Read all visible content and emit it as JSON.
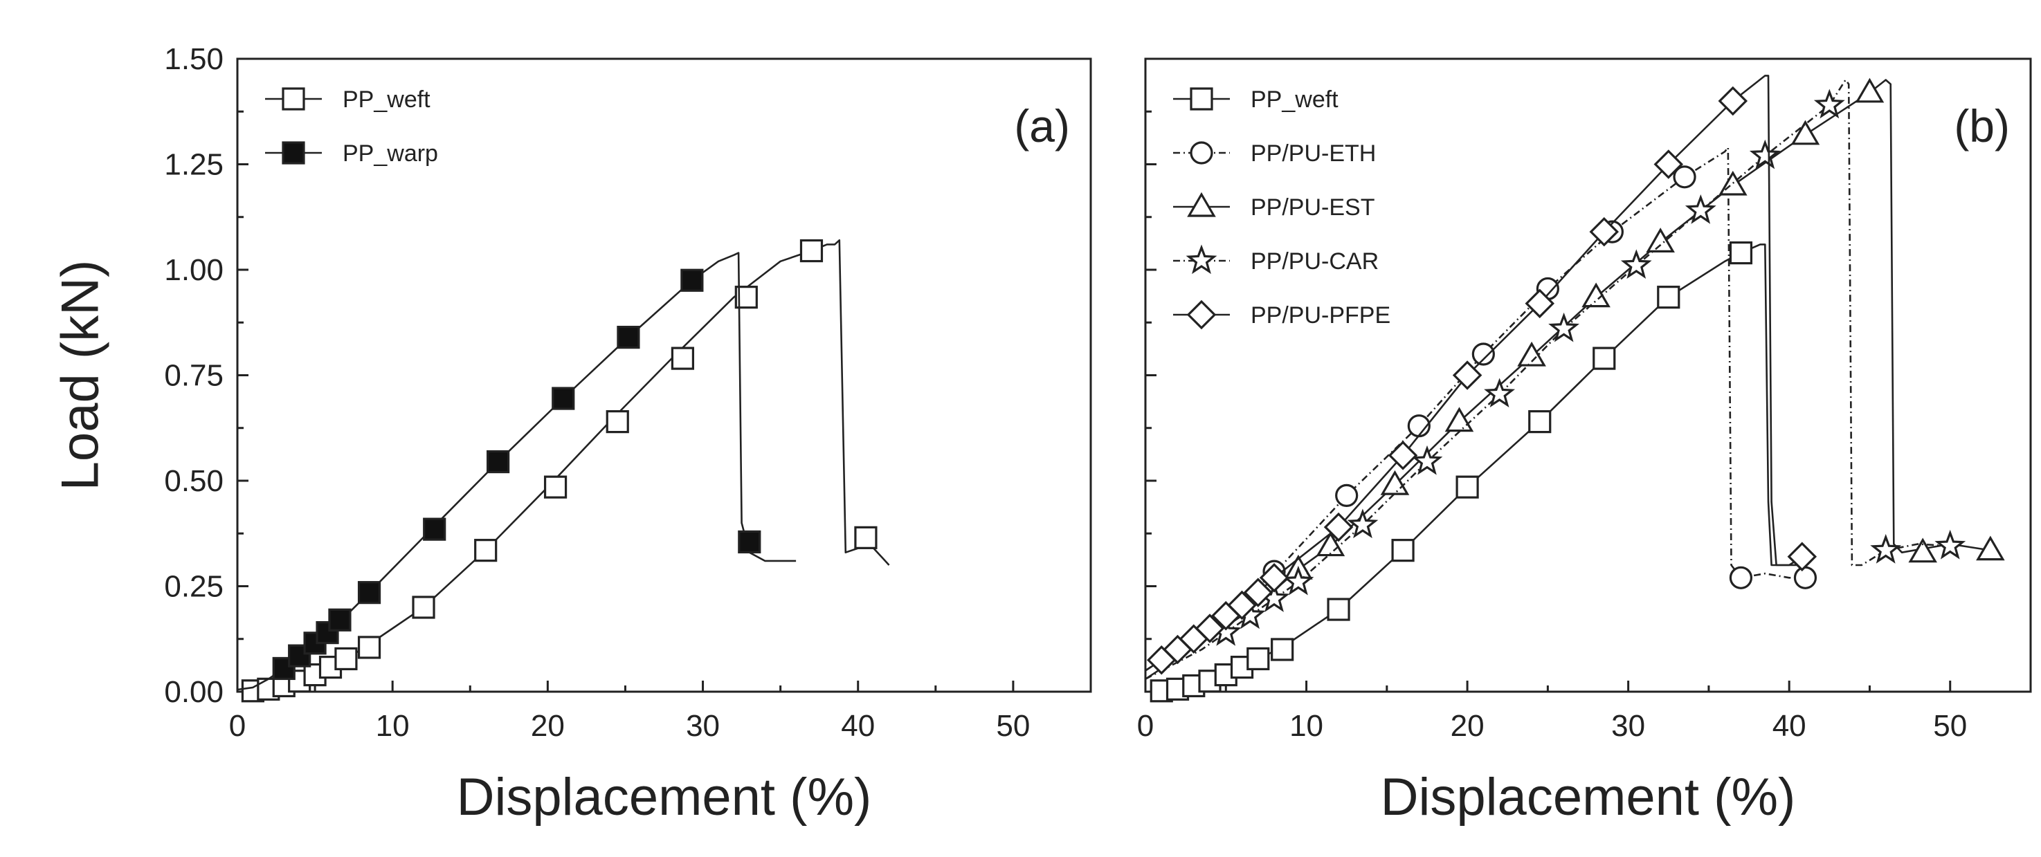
{
  "chart_data": [
    {
      "type": "line",
      "panel_label": "(a)",
      "xlabel": "Displacement (%)",
      "ylabel": "Load (kN)",
      "xlim": [
        0,
        55
      ],
      "ylim": [
        0,
        1.5
      ],
      "xticks": [
        "0",
        "10",
        "20",
        "30",
        "40",
        "50"
      ],
      "yticks": [
        "0.00",
        "0.25",
        "0.50",
        "0.75",
        "1.00",
        "1.25",
        "1.50"
      ],
      "xtick_values": [
        0,
        10,
        20,
        30,
        40,
        50
      ],
      "ytick_values": [
        0,
        0.25,
        0.5,
        0.75,
        1.0,
        1.25,
        1.5
      ],
      "legend_position": "top-left",
      "series": [
        {
          "name": "PP_weft",
          "marker": "square-open",
          "line": "solid",
          "points": [
            [
              0,
              0
            ],
            [
              1,
              0.002
            ],
            [
              2,
              0.006
            ],
            [
              3,
              0.014
            ],
            [
              4,
              0.025
            ],
            [
              5,
              0.04
            ],
            [
              6,
              0.058
            ],
            [
              7,
              0.078
            ],
            [
              8,
              0.1
            ],
            [
              10,
              0.15
            ],
            [
              12,
              0.2
            ],
            [
              16,
              0.335
            ],
            [
              20,
              0.485
            ],
            [
              24,
              0.64
            ],
            [
              28,
              0.79
            ],
            [
              32,
              0.935
            ],
            [
              35,
              1.02
            ],
            [
              37,
              1.045
            ],
            [
              38,
              1.06
            ],
            [
              38.5,
              1.06
            ],
            [
              38.8,
              1.07
            ],
            [
              39.2,
              0.33
            ],
            [
              40,
              0.34
            ],
            [
              40.5,
              0.36
            ],
            [
              41.5,
              0.32
            ],
            [
              42,
              0.3
            ]
          ],
          "marker_points": [
            [
              1,
              0.002
            ],
            [
              2,
              0.006
            ],
            [
              3,
              0.014
            ],
            [
              4,
              0.025
            ],
            [
              5,
              0.04
            ],
            [
              6,
              0.058
            ],
            [
              7,
              0.078
            ],
            [
              8.5,
              0.105
            ],
            [
              12,
              0.2
            ],
            [
              16,
              0.335
            ],
            [
              20.5,
              0.485
            ],
            [
              24.5,
              0.64
            ],
            [
              28.7,
              0.79
            ],
            [
              32.8,
              0.935
            ],
            [
              37,
              1.045
            ],
            [
              40.5,
              0.365
            ]
          ]
        },
        {
          "name": "PP_warp",
          "marker": "square-filled",
          "line": "solid",
          "points": [
            [
              0,
              0.005
            ],
            [
              1,
              0.01
            ],
            [
              2,
              0.03
            ],
            [
              3,
              0.055
            ],
            [
              4,
              0.085
            ],
            [
              5,
              0.115
            ],
            [
              6,
              0.145
            ],
            [
              7,
              0.18
            ],
            [
              8.5,
              0.235
            ],
            [
              12.5,
              0.385
            ],
            [
              16.8,
              0.545
            ],
            [
              21,
              0.695
            ],
            [
              25.2,
              0.84
            ],
            [
              29.3,
              0.975
            ],
            [
              31,
              1.02
            ],
            [
              32,
              1.035
            ],
            [
              32.3,
              1.04
            ],
            [
              32.5,
              0.4
            ],
            [
              33,
              0.33
            ],
            [
              34,
              0.31
            ],
            [
              35,
              0.31
            ],
            [
              36,
              0.31
            ]
          ],
          "marker_points": [
            [
              3,
              0.055
            ],
            [
              4,
              0.085
            ],
            [
              5,
              0.115
            ],
            [
              5.8,
              0.14
            ],
            [
              6.6,
              0.17
            ],
            [
              8.5,
              0.235
            ],
            [
              12.7,
              0.385
            ],
            [
              16.8,
              0.545
            ],
            [
              21,
              0.695
            ],
            [
              25.2,
              0.84
            ],
            [
              29.3,
              0.975
            ],
            [
              33,
              0.355
            ]
          ]
        }
      ]
    },
    {
      "type": "line",
      "panel_label": "(b)",
      "xlabel": "Displacement (%)",
      "ylabel": "",
      "xlim": [
        0,
        55
      ],
      "ylim": [
        0,
        1.5
      ],
      "xticks": [
        "0",
        "10",
        "20",
        "30",
        "40",
        "50"
      ],
      "yticks": [],
      "xtick_values": [
        0,
        10,
        20,
        30,
        40,
        50
      ],
      "ytick_values": [
        0,
        0.25,
        0.5,
        0.75,
        1.0,
        1.25,
        1.5
      ],
      "legend_position": "top-left",
      "series": [
        {
          "name": "PP_weft",
          "marker": "square-open",
          "line": "solid",
          "points": [
            [
              0,
              0
            ],
            [
              1,
              0.002
            ],
            [
              2,
              0.006
            ],
            [
              3,
              0.014
            ],
            [
              4,
              0.025
            ],
            [
              5,
              0.04
            ],
            [
              6,
              0.058
            ],
            [
              7,
              0.078
            ],
            [
              8.5,
              0.105
            ],
            [
              12,
              0.195
            ],
            [
              16,
              0.335
            ],
            [
              20,
              0.485
            ],
            [
              24.5,
              0.64
            ],
            [
              28.5,
              0.79
            ],
            [
              32.5,
              0.935
            ],
            [
              36,
              1.02
            ],
            [
              37,
              1.04
            ],
            [
              38.2,
              1.06
            ],
            [
              38.5,
              1.06
            ],
            [
              38.7,
              0.45
            ],
            [
              38.9,
              0.3
            ],
            [
              39.5,
              0.3
            ],
            [
              40.5,
              0.3
            ]
          ],
          "marker_points": [
            [
              1,
              0.002
            ],
            [
              2,
              0.006
            ],
            [
              3,
              0.014
            ],
            [
              4,
              0.025
            ],
            [
              5,
              0.04
            ],
            [
              6,
              0.058
            ],
            [
              7,
              0.078
            ],
            [
              8.5,
              0.1
            ],
            [
              12,
              0.195
            ],
            [
              16,
              0.335
            ],
            [
              20,
              0.485
            ],
            [
              24.5,
              0.64
            ],
            [
              28.5,
              0.79
            ],
            [
              32.5,
              0.935
            ],
            [
              37,
              1.04
            ]
          ]
        },
        {
          "name": "PP/PU-ETH",
          "marker": "circle-open",
          "line": "dash-dot",
          "points": [
            [
              0,
              0.05
            ],
            [
              2,
              0.1
            ],
            [
              4,
              0.16
            ],
            [
              6,
              0.22
            ],
            [
              8,
              0.28
            ],
            [
              12.5,
              0.465
            ],
            [
              17,
              0.63
            ],
            [
              21,
              0.8
            ],
            [
              25,
              0.955
            ],
            [
              29,
              1.09
            ],
            [
              33.5,
              1.22
            ],
            [
              36,
              1.28
            ],
            [
              36.2,
              1.29
            ],
            [
              36.4,
              0.3
            ],
            [
              37,
              0.27
            ],
            [
              38.5,
              0.28
            ],
            [
              40,
              0.27
            ],
            [
              41,
              0.27
            ]
          ],
          "marker_points": [
            [
              8,
              0.285
            ],
            [
              12.5,
              0.465
            ],
            [
              17,
              0.63
            ],
            [
              21,
              0.8
            ],
            [
              25,
              0.955
            ],
            [
              29,
              1.09
            ],
            [
              33.5,
              1.22
            ],
            [
              37,
              0.27
            ],
            [
              41,
              0.27
            ]
          ]
        },
        {
          "name": "PP/PU-EST",
          "marker": "triangle-open",
          "line": "solid",
          "points": [
            [
              0,
              0.03
            ],
            [
              2,
              0.08
            ],
            [
              4,
              0.13
            ],
            [
              6,
              0.18
            ],
            [
              8,
              0.24
            ],
            [
              9.5,
              0.29
            ],
            [
              11.5,
              0.345
            ],
            [
              15.5,
              0.49
            ],
            [
              19.5,
              0.64
            ],
            [
              24,
              0.795
            ],
            [
              28,
              0.935
            ],
            [
              32,
              1.065
            ],
            [
              36.5,
              1.2
            ],
            [
              41,
              1.32
            ],
            [
              45,
              1.42
            ],
            [
              46,
              1.45
            ],
            [
              46.3,
              1.44
            ],
            [
              46.5,
              0.35
            ],
            [
              47,
              0.33
            ],
            [
              48.5,
              0.34
            ],
            [
              50,
              0.35
            ],
            [
              52.5,
              0.335
            ]
          ],
          "marker_points": [
            [
              9.5,
              0.29
            ],
            [
              11.5,
              0.345
            ],
            [
              15.5,
              0.49
            ],
            [
              19.5,
              0.64
            ],
            [
              24,
              0.795
            ],
            [
              28,
              0.935
            ],
            [
              32,
              1.065
            ],
            [
              36.5,
              1.2
            ],
            [
              41,
              1.32
            ],
            [
              45,
              1.42
            ],
            [
              48.3,
              0.33
            ],
            [
              52.5,
              0.335
            ]
          ]
        },
        {
          "name": "PP/PU-CAR",
          "marker": "star-open",
          "line": "dash-dot",
          "points": [
            [
              0,
              0.03
            ],
            [
              2,
              0.07
            ],
            [
              3.5,
              0.1
            ],
            [
              5,
              0.14
            ],
            [
              6.5,
              0.18
            ],
            [
              8,
              0.22
            ],
            [
              9.5,
              0.26
            ],
            [
              13.5,
              0.395
            ],
            [
              17.5,
              0.545
            ],
            [
              22,
              0.705
            ],
            [
              26,
              0.86
            ],
            [
              30.5,
              1.01
            ],
            [
              34.5,
              1.14
            ],
            [
              38.5,
              1.27
            ],
            [
              42.5,
              1.39
            ],
            [
              43.5,
              1.45
            ],
            [
              43.7,
              1.44
            ],
            [
              43.9,
              0.3
            ],
            [
              44.5,
              0.3
            ],
            [
              46,
              0.335
            ],
            [
              48,
              0.35
            ],
            [
              50,
              0.345
            ]
          ],
          "marker_points": [
            [
              5,
              0.14
            ],
            [
              6.5,
              0.18
            ],
            [
              8,
              0.22
            ],
            [
              9.5,
              0.26
            ],
            [
              13.5,
              0.395
            ],
            [
              17.5,
              0.545
            ],
            [
              22,
              0.705
            ],
            [
              26,
              0.86
            ],
            [
              30.5,
              1.01
            ],
            [
              34.5,
              1.14
            ],
            [
              38.5,
              1.27
            ],
            [
              42.5,
              1.39
            ],
            [
              46,
              0.335
            ],
            [
              50,
              0.345
            ]
          ]
        },
        {
          "name": "PP/PU-PFPE",
          "marker": "diamond-open",
          "line": "solid",
          "points": [
            [
              0,
              0.05
            ],
            [
              1,
              0.075
            ],
            [
              2,
              0.1
            ],
            [
              3,
              0.125
            ],
            [
              4,
              0.15
            ],
            [
              5,
              0.18
            ],
            [
              6,
              0.205
            ],
            [
              7,
              0.235
            ],
            [
              8,
              0.27
            ],
            [
              12,
              0.39
            ],
            [
              16,
              0.56
            ],
            [
              20,
              0.75
            ],
            [
              24.5,
              0.92
            ],
            [
              28.5,
              1.09
            ],
            [
              32.5,
              1.25
            ],
            [
              36.5,
              1.4
            ],
            [
              38.5,
              1.46
            ],
            [
              38.7,
              1.46
            ],
            [
              38.9,
              0.45
            ],
            [
              39.2,
              0.3
            ],
            [
              40,
              0.3
            ],
            [
              40.8,
              0.32
            ]
          ],
          "marker_points": [
            [
              1,
              0.075
            ],
            [
              2,
              0.1
            ],
            [
              3,
              0.125
            ],
            [
              4,
              0.15
            ],
            [
              5,
              0.18
            ],
            [
              6,
              0.205
            ],
            [
              7,
              0.235
            ],
            [
              8,
              0.27
            ],
            [
              12,
              0.39
            ],
            [
              16,
              0.56
            ],
            [
              20,
              0.75
            ],
            [
              24.5,
              0.92
            ],
            [
              28.5,
              1.09
            ],
            [
              32.5,
              1.25
            ],
            [
              36.5,
              1.4
            ],
            [
              40.8,
              0.32
            ]
          ]
        }
      ]
    }
  ]
}
